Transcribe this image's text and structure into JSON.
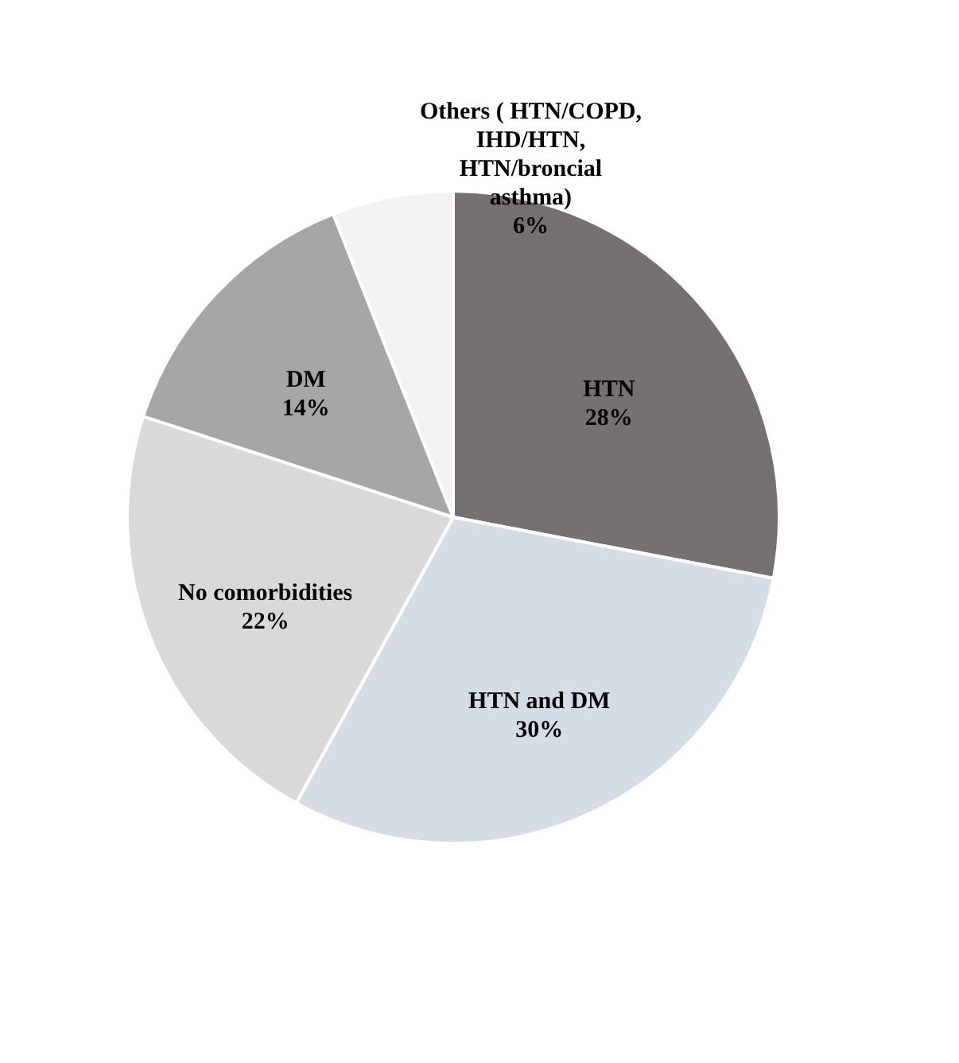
{
  "chart_data": {
    "type": "pie",
    "categories": [
      "HTN",
      "HTN and DM",
      "No comorbidities",
      "DM",
      "Others ( HTN/COPD, IHD/HTN, HTN/broncial asthma)"
    ],
    "values": [
      28,
      30,
      22,
      14,
      6
    ],
    "colors": [
      "#767171",
      "#d6dce5",
      "#d9d9d9",
      "#a6a6a6",
      "#f2f2f2"
    ],
    "value_labels": [
      "28%",
      "30%",
      "22%",
      "14%",
      "6%"
    ],
    "legend": false
  }
}
